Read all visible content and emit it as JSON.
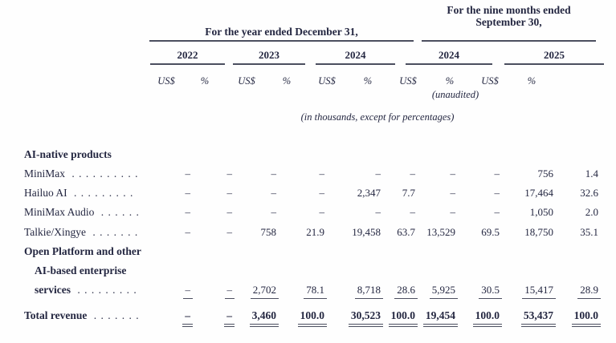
{
  "page": {
    "background": "#fefefe",
    "text_color": "#242741",
    "rule_color": "#4b4e5f"
  },
  "header": {
    "group1": {
      "title": "For the year ended December 31,",
      "years": [
        "2022",
        "2023",
        "2024"
      ]
    },
    "group2": {
      "title_line1": "For the nine months ended",
      "title_line2": "September 30,",
      "years": [
        "2024",
        "2025"
      ]
    },
    "unit_currency": "US$",
    "unit_percent": "%",
    "unaudited_note": "(unaudited)",
    "scale_note": "(in thousands, except for percentages)"
  },
  "table": {
    "rows": [
      {
        "label": "AI-native products",
        "bold": true,
        "indent": false,
        "leader": "",
        "cells": null
      },
      {
        "label": "MiniMax",
        "bold": false,
        "indent": false,
        "leader": ". . . . . . . . . .",
        "cells": [
          "–",
          "–",
          "–",
          "–",
          "–",
          "–",
          "–",
          "–",
          "756",
          "1.4"
        ]
      },
      {
        "label": "Hailuo AI",
        "bold": false,
        "indent": false,
        "leader": ". . . . . . . . .",
        "cells": [
          "–",
          "–",
          "–",
          "–",
          "2,347",
          "7.7",
          "–",
          "–",
          "17,464",
          "32.6"
        ]
      },
      {
        "label": "MiniMax Audio",
        "bold": false,
        "indent": false,
        "leader": ". . . . . .",
        "cells": [
          "–",
          "–",
          "–",
          "–",
          "–",
          "–",
          "–",
          "–",
          "1,050",
          "2.0"
        ]
      },
      {
        "label": "Talkie/Xingye",
        "bold": false,
        "indent": false,
        "leader": ". . . . . . .",
        "cells": [
          "–",
          "–",
          "758",
          "21.9",
          "19,458",
          "63.7",
          "13,529",
          "69.5",
          "18,750",
          "35.1"
        ]
      },
      {
        "label": "Open Platform and other",
        "bold": true,
        "indent": false,
        "leader": "",
        "cells": null
      },
      {
        "label": "AI-based enterprise",
        "bold": true,
        "indent": true,
        "leader": "",
        "cells": null
      },
      {
        "label": "services",
        "bold": true,
        "indent": true,
        "leader": ". . . . . . . . .",
        "underline": "single",
        "cells": [
          "–",
          "–",
          "2,702",
          "78.1",
          "8,718",
          "28.6",
          "5,925",
          "30.5",
          "15,417",
          "28.9"
        ]
      },
      {
        "label": "Total revenue",
        "bold": true,
        "indent": false,
        "leader": ". . . . . . .",
        "underline": "double",
        "cells": [
          "–",
          "–",
          "3,460",
          "100.0",
          "30,523",
          "100.0",
          "19,454",
          "100.0",
          "53,437",
          "100.0"
        ]
      }
    ]
  }
}
